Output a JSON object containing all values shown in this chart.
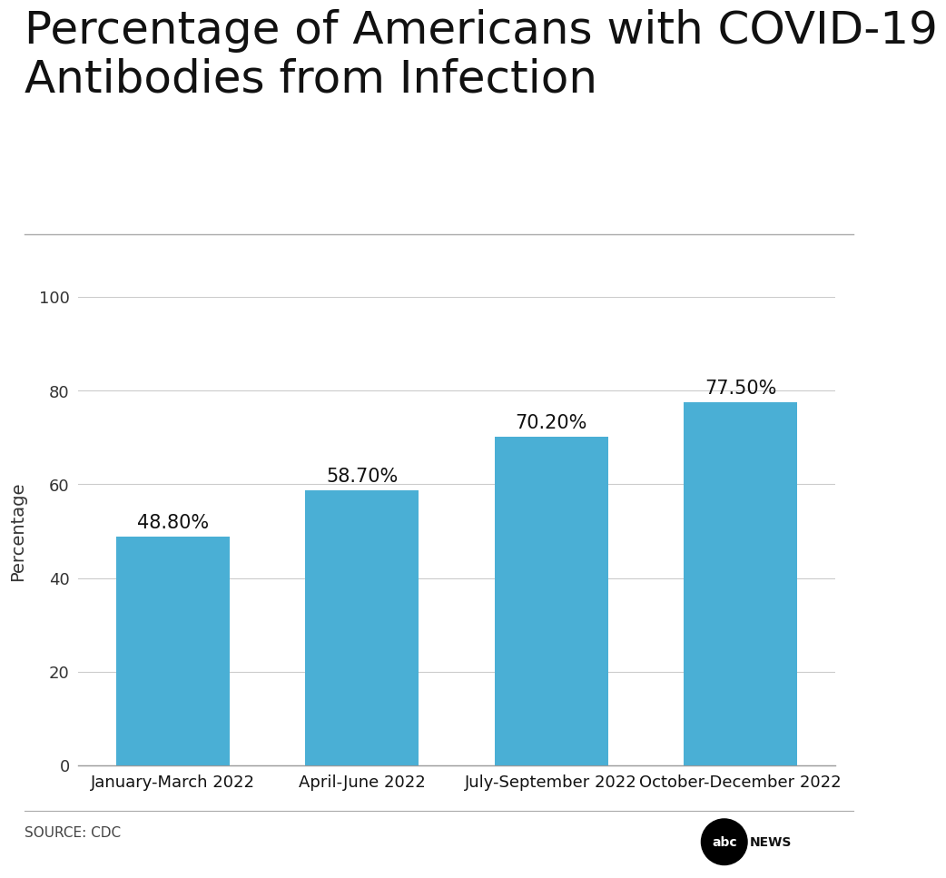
{
  "title": "Percentage of Americans with COVID-19\nAntibodies from Infection",
  "categories": [
    "January-March 2022",
    "April-June 2022",
    "July-September 2022",
    "October-December 2022"
  ],
  "values": [
    48.8,
    58.7,
    70.2,
    77.5
  ],
  "labels": [
    "48.80%",
    "58.70%",
    "70.20%",
    "77.50%"
  ],
  "bar_color": "#4aafd5",
  "ylabel": "Percentage",
  "ylim": [
    0,
    100
  ],
  "yticks": [
    0,
    20,
    40,
    60,
    80,
    100
  ],
  "source_text": "SOURCE: CDC",
  "background_color": "#ffffff",
  "title_fontsize": 36,
  "label_fontsize": 15,
  "tick_fontsize": 13,
  "ylabel_fontsize": 14,
  "source_fontsize": 11
}
